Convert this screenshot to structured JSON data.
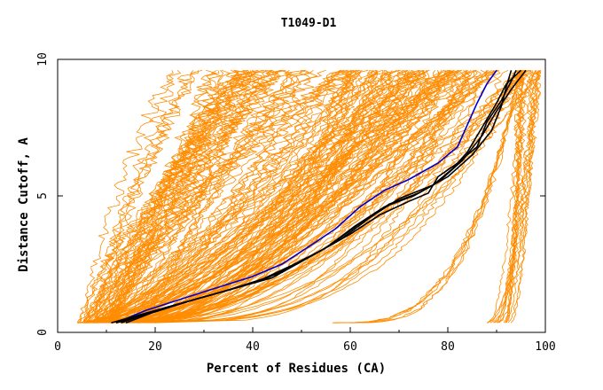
{
  "chart_data": {
    "type": "line",
    "title": "T1049-D1",
    "xlabel": "Percent of Residues (CA)",
    "ylabel": "Distance Cutoff, A",
    "xlim": [
      0,
      100
    ],
    "ylim": [
      0,
      10
    ],
    "x_ticks": [
      0,
      20,
      40,
      60,
      80,
      100
    ],
    "y_ticks": [
      0,
      5,
      10
    ],
    "background_colors": {
      "orange": "#ff8c00",
      "blue": "#0000cd",
      "black": "#000000"
    },
    "highlight_series": [
      {
        "name": "blue-model",
        "color": "#0000cd",
        "points": [
          [
            12,
            0.35
          ],
          [
            18,
            0.8
          ],
          [
            25,
            1.2
          ],
          [
            32,
            1.6
          ],
          [
            40,
            2.05
          ],
          [
            46,
            2.5
          ],
          [
            52,
            3.2
          ],
          [
            57,
            3.8
          ],
          [
            62,
            4.6
          ],
          [
            67,
            5.2
          ],
          [
            72,
            5.6
          ],
          [
            78,
            6.2
          ],
          [
            82,
            6.8
          ],
          [
            84,
            7.6
          ],
          [
            86,
            8.4
          ],
          [
            88,
            9.1
          ],
          [
            90,
            9.6
          ]
        ]
      },
      {
        "name": "black-model-1",
        "color": "#000000",
        "points": [
          [
            11,
            0.35
          ],
          [
            18,
            0.7
          ],
          [
            26,
            1.1
          ],
          [
            34,
            1.5
          ],
          [
            42,
            1.95
          ],
          [
            48,
            2.45
          ],
          [
            54,
            3.0
          ],
          [
            60,
            3.6
          ],
          [
            66,
            4.3
          ],
          [
            72,
            4.8
          ],
          [
            76,
            5.1
          ],
          [
            78,
            5.7
          ],
          [
            82,
            6.2
          ],
          [
            86,
            6.8
          ],
          [
            88,
            7.7
          ],
          [
            91,
            8.5
          ],
          [
            93,
            9.2
          ],
          [
            94,
            9.6
          ]
        ]
      },
      {
        "name": "black-model-2",
        "color": "#000000",
        "points": [
          [
            13,
            0.35
          ],
          [
            20,
            0.8
          ],
          [
            28,
            1.2
          ],
          [
            36,
            1.6
          ],
          [
            44,
            2.0
          ],
          [
            50,
            2.6
          ],
          [
            56,
            3.2
          ],
          [
            62,
            4.0
          ],
          [
            68,
            4.7
          ],
          [
            74,
            5.1
          ],
          [
            80,
            5.7
          ],
          [
            85,
            6.5
          ],
          [
            89,
            7.4
          ],
          [
            91,
            8.3
          ],
          [
            92,
            9.0
          ],
          [
            93,
            9.6
          ]
        ]
      },
      {
        "name": "black-model-3",
        "color": "#000000",
        "points": [
          [
            14,
            0.35
          ],
          [
            22,
            0.9
          ],
          [
            30,
            1.3
          ],
          [
            38,
            1.7
          ],
          [
            46,
            2.2
          ],
          [
            52,
            2.8
          ],
          [
            58,
            3.4
          ],
          [
            64,
            4.2
          ],
          [
            70,
            4.9
          ],
          [
            77,
            5.4
          ],
          [
            81,
            6.0
          ],
          [
            84,
            6.6
          ],
          [
            87,
            7.5
          ],
          [
            90,
            8.4
          ],
          [
            92,
            9.1
          ],
          [
            95,
            9.6
          ]
        ]
      },
      {
        "name": "black-model-4",
        "color": "#000000",
        "points": [
          [
            12,
            0.35
          ],
          [
            20,
            0.75
          ],
          [
            27,
            1.15
          ],
          [
            35,
            1.55
          ],
          [
            43,
            2.0
          ],
          [
            49,
            2.5
          ],
          [
            55,
            3.1
          ],
          [
            61,
            3.9
          ],
          [
            67,
            4.6
          ],
          [
            73,
            5.0
          ],
          [
            78,
            5.5
          ],
          [
            83,
            6.3
          ],
          [
            87,
            7.2
          ],
          [
            90,
            8.1
          ],
          [
            93,
            8.9
          ],
          [
            96,
            9.6
          ]
        ]
      }
    ]
  }
}
